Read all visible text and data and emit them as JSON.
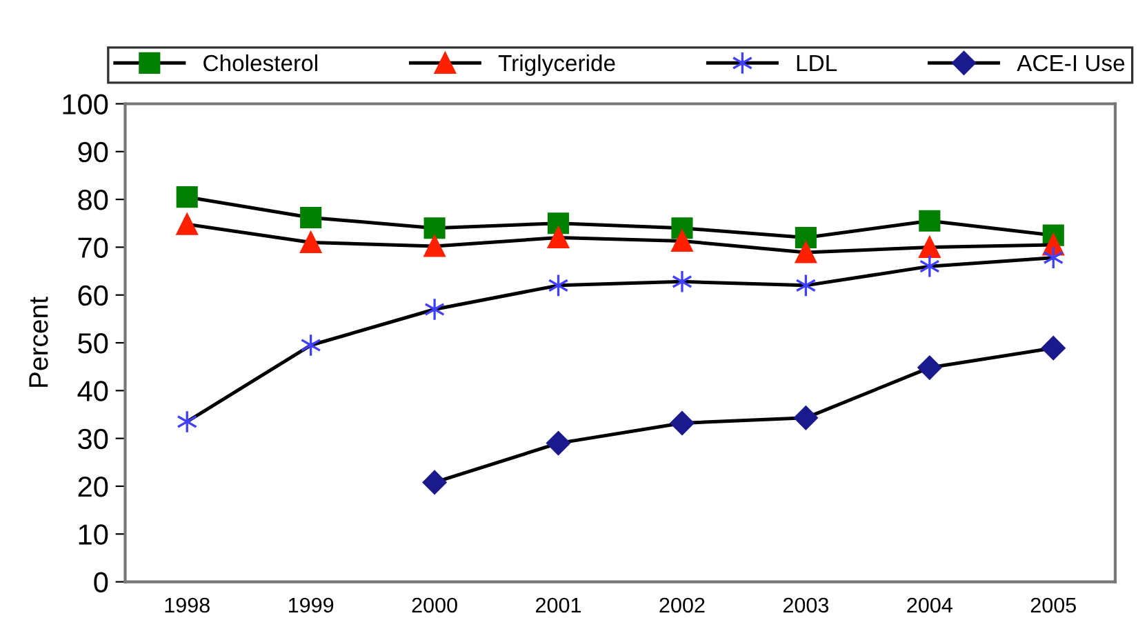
{
  "chart_data": {
    "type": "line",
    "ylabel": "Percent",
    "categories": [
      "1998",
      "1999",
      "2000",
      "2001",
      "2002",
      "2003",
      "2004",
      "2005"
    ],
    "series": [
      {
        "name": "Cholesterol",
        "color": "#008000",
        "marker": "square",
        "values": [
          80.5,
          76.2,
          74,
          75,
          74,
          72,
          75.5,
          72.5
        ]
      },
      {
        "name": "Triglyceride",
        "color": "#ff2000",
        "marker": "triangle",
        "values": [
          74.8,
          71,
          70.2,
          72,
          71.3,
          68.9,
          70,
          70.5
        ]
      },
      {
        "name": "LDL",
        "color": "#4040ff",
        "marker": "cross",
        "values": [
          33.5,
          49.5,
          57,
          62,
          62.8,
          62,
          66,
          67.8
        ]
      },
      {
        "name": "ACE-I Use",
        "color": "#1a1a8c",
        "marker": "diamond",
        "values": [
          null,
          null,
          20.8,
          29,
          33.2,
          34.3,
          44.8,
          48.9
        ]
      }
    ],
    "ylim": [
      0,
      100
    ],
    "yticks": [
      0,
      10,
      20,
      30,
      40,
      50,
      60,
      70,
      80,
      90,
      100
    ],
    "grid": false,
    "legend": "top",
    "line_style": "solid"
  }
}
